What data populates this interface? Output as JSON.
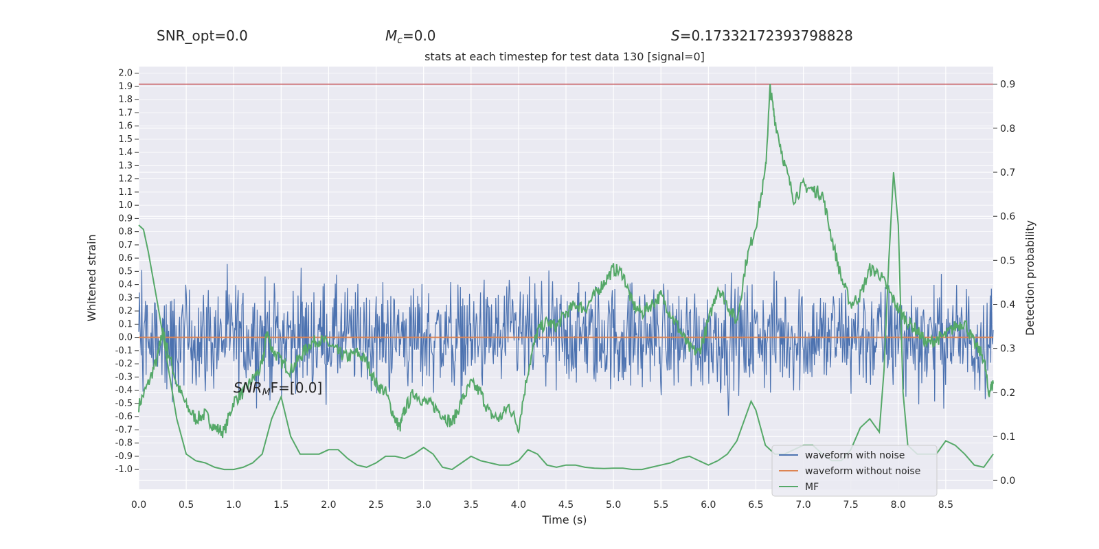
{
  "header": {
    "snr_opt": "SNR_opt=0.0",
    "mc_sym": "M",
    "mc_sub": "c",
    "mc_val": "=0.0",
    "s_sym": "S",
    "s_val": "=0.17332172393798828"
  },
  "chart_data": {
    "type": "line",
    "title": "stats at each timestep for test data 130 [signal=0]",
    "xlabel": "Time (s)",
    "ylabel_left": "Whitened strain",
    "ylabel_right": "Detection probability",
    "xlim": [
      0.0,
      9.0
    ],
    "ylim_right": [
      -0.02,
      0.94
    ],
    "ylim_left": [
      -1.15,
      2.05
    ],
    "x_ticks": [
      "0.0",
      "0.5",
      "1.0",
      "1.5",
      "2.0",
      "2.5",
      "3.0",
      "3.5",
      "4.0",
      "4.5",
      "5.0",
      "5.5",
      "6.0",
      "6.5",
      "7.0",
      "7.5",
      "8.0",
      "8.5"
    ],
    "x_tick_values": [
      0.0,
      0.5,
      1.0,
      1.5,
      2.0,
      2.5,
      3.0,
      3.5,
      4.0,
      4.5,
      5.0,
      5.5,
      6.0,
      6.5,
      7.0,
      7.5,
      8.0,
      8.5
    ],
    "right_ticks": [
      "0.0",
      "0.1",
      "0.2",
      "0.3",
      "0.4",
      "0.5",
      "0.6",
      "0.7",
      "0.8",
      "0.9"
    ],
    "right_tick_values": [
      0.0,
      0.1,
      0.2,
      0.3,
      0.4,
      0.5,
      0.6,
      0.7,
      0.8,
      0.9
    ],
    "left_ticks": [
      "2.0",
      "1.9",
      "1.8",
      "1.7",
      "1.6",
      "1.5",
      "1.4",
      "1.3",
      "1.2",
      "1.1",
      "1.0",
      "0.9",
      "0.8",
      "0.7",
      "0.6",
      "0.5",
      "0.4",
      "0.3",
      "0.2",
      "0.1",
      "0.0",
      "-0.1",
      "-0.2",
      "-0.3",
      "-0.4",
      "-0.5",
      "-0.6",
      "-0.7",
      "-0.8",
      "-0.9",
      "-1.0"
    ],
    "left_tick_values": [
      2.0,
      1.9,
      1.8,
      1.7,
      1.6,
      1.5,
      1.4,
      1.3,
      1.2,
      1.1,
      1.0,
      0.9,
      0.8,
      0.7,
      0.6,
      0.5,
      0.4,
      0.3,
      0.2,
      0.1,
      0.0,
      -0.1,
      -0.2,
      -0.3,
      -0.4,
      -0.5,
      -0.6,
      -0.7,
      -0.8,
      -0.9,
      -1.0
    ],
    "threshold": {
      "value": 0.9,
      "color": "#c44e52"
    },
    "annotation": {
      "sym": "SNR",
      "sub": "M",
      "tail": "F=[0.0]"
    },
    "legend": {
      "placement": "lower-right",
      "entries": [
        {
          "label": "waveform with noise",
          "color": "#4c72b0"
        },
        {
          "label": "waveform without noise",
          "color": "#dd8452"
        },
        {
          "label": "MF",
          "color": "#55a868"
        }
      ]
    },
    "series": [
      {
        "name": "waveform with noise",
        "axis": "left",
        "color": "#4c72b0",
        "description_values": {
          "mean": 0.0,
          "amplitude_approx": 0.35,
          "peak_max": 0.6,
          "peak_min": -0.7
        }
      },
      {
        "name": "waveform without noise",
        "axis": "left",
        "color": "#dd8452",
        "values_constant": 0.0
      },
      {
        "name": "Detection probability",
        "axis": "right",
        "color": "#55a868",
        "x": [
          0.0,
          0.1,
          0.2,
          0.25,
          0.3,
          0.4,
          0.5,
          0.6,
          0.7,
          0.8,
          0.9,
          1.0,
          1.1,
          1.2,
          1.3,
          1.35,
          1.4,
          1.5,
          1.6,
          1.7,
          1.8,
          1.9,
          2.0,
          2.1,
          2.2,
          2.3,
          2.4,
          2.5,
          2.6,
          2.7,
          2.75,
          2.8,
          2.9,
          3.0,
          3.1,
          3.2,
          3.3,
          3.4,
          3.5,
          3.6,
          3.7,
          3.8,
          3.9,
          4.0,
          4.1,
          4.2,
          4.3,
          4.4,
          4.5,
          4.6,
          4.7,
          4.8,
          4.9,
          5.0,
          5.1,
          5.2,
          5.3,
          5.4,
          5.5,
          5.6,
          5.7,
          5.8,
          5.9,
          6.0,
          6.1,
          6.2,
          6.3,
          6.4,
          6.5,
          6.6,
          6.65,
          6.7,
          6.8,
          6.9,
          7.0,
          7.1,
          7.2,
          7.3,
          7.4,
          7.5,
          7.6,
          7.7,
          7.8,
          7.9,
          8.0,
          8.1,
          8.2,
          8.3,
          8.4,
          8.5,
          8.6,
          8.7,
          8.8,
          8.9,
          8.95,
          9.0
        ],
        "values": [
          0.17,
          0.22,
          0.28,
          0.34,
          0.3,
          0.22,
          0.17,
          0.14,
          0.15,
          0.12,
          0.11,
          0.18,
          0.2,
          0.23,
          0.26,
          0.34,
          0.3,
          0.27,
          0.25,
          0.28,
          0.31,
          0.32,
          0.31,
          0.29,
          0.28,
          0.29,
          0.27,
          0.22,
          0.2,
          0.14,
          0.12,
          0.16,
          0.2,
          0.18,
          0.17,
          0.15,
          0.13,
          0.18,
          0.22,
          0.2,
          0.15,
          0.14,
          0.17,
          0.12,
          0.25,
          0.34,
          0.36,
          0.35,
          0.38,
          0.4,
          0.39,
          0.42,
          0.45,
          0.48,
          0.47,
          0.4,
          0.38,
          0.4,
          0.42,
          0.38,
          0.34,
          0.3,
          0.29,
          0.36,
          0.44,
          0.4,
          0.36,
          0.5,
          0.58,
          0.7,
          0.89,
          0.82,
          0.72,
          0.64,
          0.67,
          0.66,
          0.65,
          0.55,
          0.46,
          0.4,
          0.42,
          0.48,
          0.47,
          0.43,
          0.39,
          0.36,
          0.34,
          0.31,
          0.32,
          0.33,
          0.35,
          0.36,
          0.31,
          0.28,
          0.2,
          0.22
        ]
      },
      {
        "name": "MF",
        "axis": "right",
        "color": "#55a868",
        "x": [
          0.0,
          0.05,
          0.1,
          0.2,
          0.3,
          0.4,
          0.5,
          0.6,
          0.7,
          0.8,
          0.9,
          1.0,
          1.1,
          1.2,
          1.3,
          1.4,
          1.5,
          1.6,
          1.7,
          1.8,
          1.9,
          2.0,
          2.1,
          2.2,
          2.3,
          2.4,
          2.5,
          2.6,
          2.7,
          2.8,
          2.9,
          3.0,
          3.1,
          3.2,
          3.3,
          3.4,
          3.5,
          3.6,
          3.7,
          3.8,
          3.9,
          4.0,
          4.1,
          4.2,
          4.3,
          4.4,
          4.5,
          4.6,
          4.7,
          4.8,
          4.9,
          5.0,
          5.1,
          5.2,
          5.3,
          5.4,
          5.5,
          5.6,
          5.7,
          5.8,
          5.9,
          6.0,
          6.1,
          6.2,
          6.3,
          6.4,
          6.45,
          6.5,
          6.6,
          6.7,
          6.8,
          6.9,
          7.0,
          7.1,
          7.2,
          7.3,
          7.4,
          7.5,
          7.6,
          7.7,
          7.8,
          7.85,
          7.9,
          7.95,
          8.0,
          8.05,
          8.1,
          8.2,
          8.3,
          8.4,
          8.5,
          8.6,
          8.7,
          8.8,
          8.9,
          9.0
        ],
        "values": [
          0.58,
          0.57,
          0.52,
          0.4,
          0.27,
          0.14,
          0.06,
          0.045,
          0.04,
          0.03,
          0.025,
          0.025,
          0.03,
          0.04,
          0.06,
          0.14,
          0.19,
          0.1,
          0.06,
          0.06,
          0.06,
          0.07,
          0.07,
          0.05,
          0.035,
          0.03,
          0.04,
          0.055,
          0.055,
          0.05,
          0.06,
          0.075,
          0.06,
          0.03,
          0.025,
          0.04,
          0.055,
          0.045,
          0.04,
          0.035,
          0.035,
          0.045,
          0.07,
          0.06,
          0.035,
          0.03,
          0.035,
          0.035,
          0.03,
          0.028,
          0.027,
          0.028,
          0.028,
          0.025,
          0.025,
          0.03,
          0.035,
          0.04,
          0.05,
          0.055,
          0.045,
          0.035,
          0.045,
          0.06,
          0.09,
          0.15,
          0.18,
          0.16,
          0.08,
          0.06,
          0.06,
          0.07,
          0.08,
          0.08,
          0.06,
          0.045,
          0.045,
          0.07,
          0.12,
          0.14,
          0.11,
          0.25,
          0.5,
          0.7,
          0.58,
          0.2,
          0.08,
          0.06,
          0.06,
          0.06,
          0.09,
          0.08,
          0.06,
          0.035,
          0.03,
          0.06
        ]
      }
    ]
  }
}
